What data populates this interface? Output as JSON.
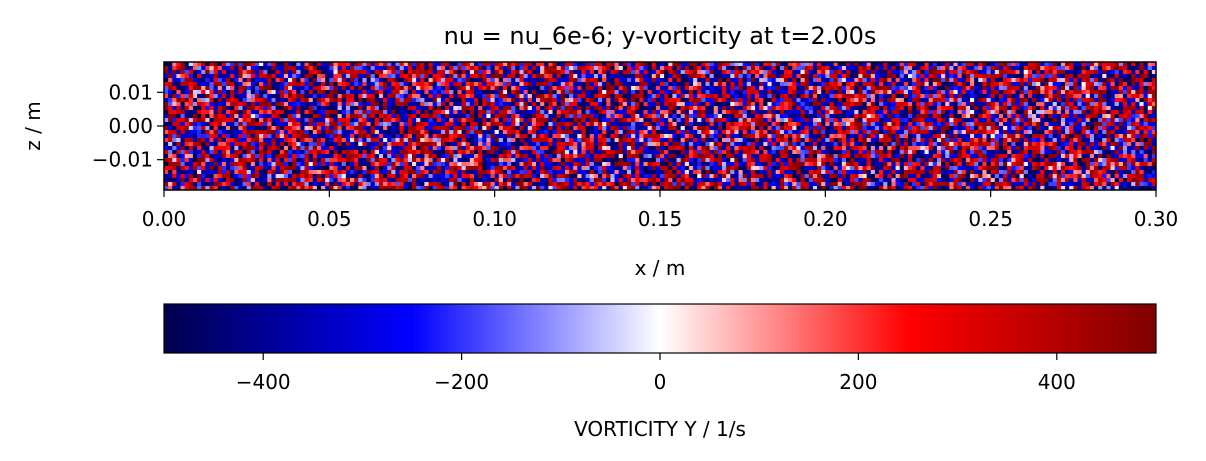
{
  "chart_data": [
    {
      "type": "heatmap",
      "title": "nu = nu_6e-6; y-vorticity at t=2.00s",
      "xlabel": "x / m",
      "ylabel": "z / m",
      "xlim": [
        0.0,
        0.3
      ],
      "ylim": [
        -0.019,
        0.019
      ],
      "x_ticks": [
        0.0,
        0.05,
        0.1,
        0.15,
        0.2,
        0.25,
        0.3
      ],
      "x_tick_labels": [
        "0.00",
        "0.05",
        "0.10",
        "0.15",
        "0.20",
        "0.25",
        "0.30"
      ],
      "y_ticks": [
        0.01,
        0.0,
        -0.01
      ],
      "y_tick_labels": [
        "0.01",
        "0.00",
        "−0.01"
      ],
      "grid_cols": 240,
      "grid_rows": 32,
      "value_range": [
        -500,
        500
      ],
      "colormap": "seismic",
      "colormap_stops": [
        "#00004c",
        "#0000ff",
        "#ffffff",
        "#ff0000",
        "#7f0000"
      ],
      "grid": false
    },
    {
      "type": "colorbar",
      "label": "VORTICITY Y / 1/s",
      "range": [
        -500,
        500
      ],
      "ticks": [
        -400,
        -200,
        0,
        200,
        400
      ],
      "tick_labels": [
        "−400",
        "−200",
        "0",
        "200",
        "400"
      ],
      "orientation": "horizontal"
    }
  ]
}
